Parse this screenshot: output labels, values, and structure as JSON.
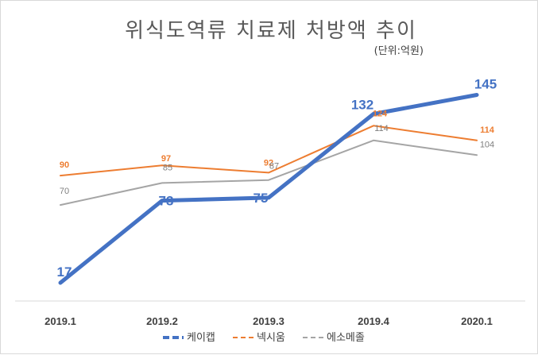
{
  "chart_data": {
    "type": "line",
    "title": "위식도역류 치료제 처방액 추이",
    "subtitle": "(단위:억원)",
    "categories": [
      "2019.1",
      "2019.2",
      "2019.3",
      "2019.4",
      "2020.1"
    ],
    "ylim": [
      10,
      155
    ],
    "grid": false,
    "legend_position": "bottom",
    "series": [
      {
        "name": "케이캡",
        "values": [
          17,
          73,
          75,
          132,
          145
        ],
        "color": "#4472c4",
        "style": "dashed-thick"
      },
      {
        "name": "넥시움",
        "values": [
          90,
          97,
          92,
          124,
          114
        ],
        "color": "#ed7d31",
        "style": "dashed"
      },
      {
        "name": "에소메졸",
        "values": [
          70,
          85,
          87,
          114,
          104
        ],
        "color": "#a5a5a5",
        "style": "dashed"
      }
    ]
  }
}
